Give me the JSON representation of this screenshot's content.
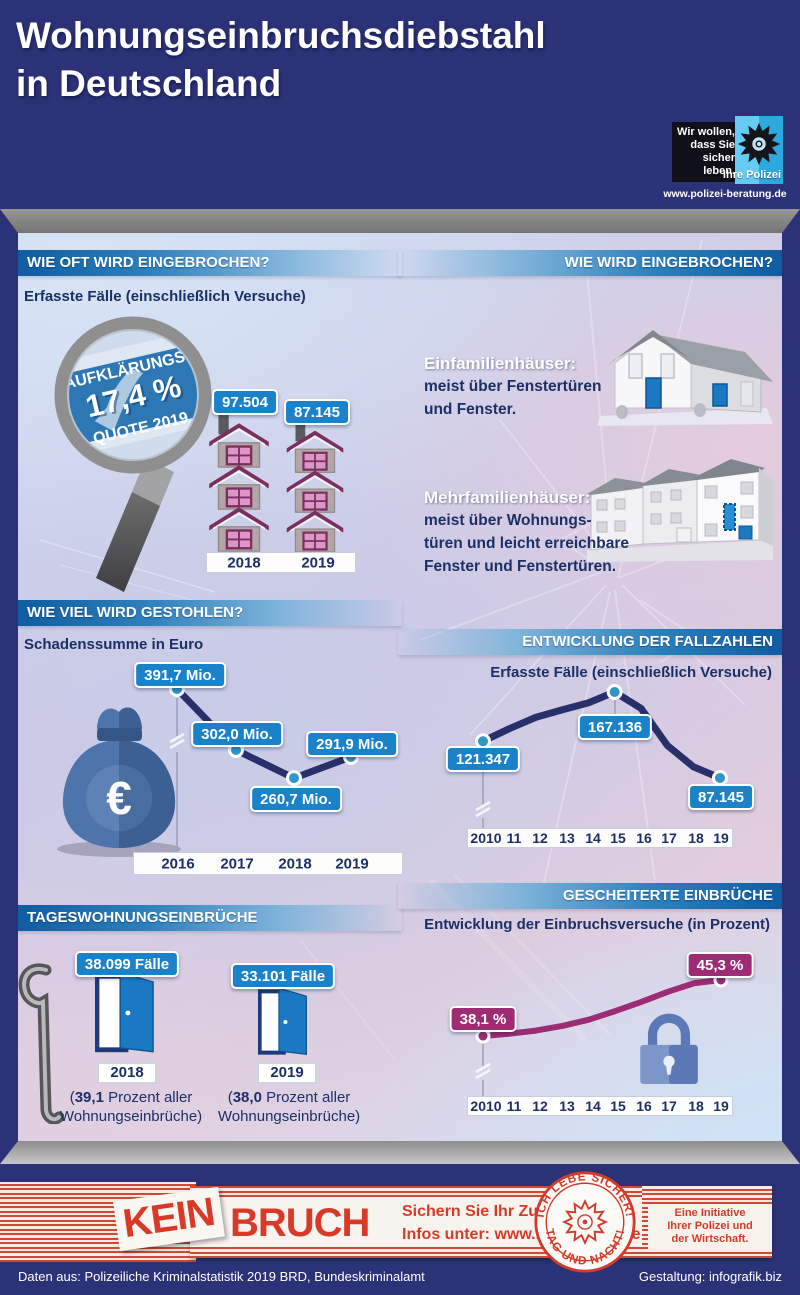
{
  "poster": {
    "title_line1": "Wohnungseinbruchsdiebstahl",
    "title_line2": "in Deutschland",
    "police": {
      "slogan1": "Wir wollen,",
      "slogan2": "dass Sie",
      "slogan3": "sicher leben.",
      "brand": "Ihre Polizei",
      "url": "www.polizei-beratung.de"
    }
  },
  "sections": {
    "how_often": {
      "header": "WIE OFT WIRD EINGEBROCHEN?",
      "subtitle": "Erfasste Fälle (einschließlich Versuche)",
      "magnifier": {
        "top": "AUFKLÄRUNGS-",
        "value": "17,4 %",
        "bottom": "QUOTE 2019"
      },
      "values": [
        "97.504",
        "87.145"
      ],
      "years": [
        "2018",
        "2019"
      ]
    },
    "how": {
      "header": "WIE WIRD EINGEBROCHEN?",
      "single_family": {
        "title": "Einfamilienhäuser:",
        "line1": "meist über Fenstertüren",
        "line2": "und Fenster."
      },
      "multi_family": {
        "title": "Mehrfamilienhäuser:",
        "line1": "meist über Wohnungs-",
        "line2": "türen und leicht erreichbare",
        "line3": "Fenster und Fenstertüren."
      }
    },
    "how_much": {
      "header": "WIE VIEL WIRD GESTOHLEN?",
      "subtitle": "Schadenssumme in Euro",
      "labels": [
        "391,7 Mio.",
        "302,0 Mio.",
        "260,7 Mio.",
        "291,9 Mio."
      ],
      "years": [
        "2016",
        "2017",
        "2018",
        "2019"
      ]
    },
    "case_development": {
      "header": "ENTWICKLUNG DER FALLZAHLEN",
      "subtitle": "Erfasste Fälle (einschließlich Versuche)",
      "labels": [
        "121.347",
        "167.136",
        "87.145"
      ],
      "years": [
        "2010",
        "11",
        "12",
        "13",
        "14",
        "15",
        "16",
        "17",
        "18",
        "19"
      ]
    },
    "daytime": {
      "header": "TAGESWOHNUNGSEINBRÜCHE",
      "items": [
        {
          "cases": "38.099 Fälle",
          "year": "2018",
          "bracket": "(",
          "pct": "39,1",
          "suffix": " Prozent aller",
          "line2": "Wohnungseinbrüche)"
        },
        {
          "cases": "33.101 Fälle",
          "year": "2019",
          "bracket": "(",
          "pct": "38,0",
          "suffix": " Prozent aller",
          "line2": "Wohnungseinbrüche)"
        }
      ]
    },
    "failed": {
      "header": "GESCHEITERTE EINBRÜCHE",
      "subtitle": "Entwicklung der Einbruchsversuche (in Prozent)",
      "labels": [
        "38,1 %",
        "45,3 %"
      ],
      "years": [
        "2010",
        "11",
        "12",
        "13",
        "14",
        "15",
        "16",
        "17",
        "18",
        "19"
      ]
    }
  },
  "footer": {
    "campaign": {
      "kein": "KEIN",
      "bruch": "BRUCH",
      "line1": "Sichern Sie Ihr Zuhause.",
      "line2": "Infos unter: www.k-einbruch.de",
      "stamp_top": "ICH LEBE SICHER!",
      "stamp_bottom": "TAG UND NACHT!",
      "init1": "Eine Initiative",
      "init2": "Ihrer Polizei und",
      "init3": "der Wirtschaft."
    },
    "source": "Daten aus: Polizeiliche Kriminalstatistik 2019 BRD, Bundeskriminalamt",
    "design": "Gestaltung: infografik.biz"
  },
  "colors": {
    "navy_frame": "#2c3278",
    "header_bar_blue": "#0e5ca2",
    "accent_blue_bubble": "#1a82c8",
    "line_navy": "#27306b",
    "marker_teal": "#2e96c8",
    "magenta": "#9e2c74",
    "campaign_red": "#d93a28",
    "text_navy": "#1b3066"
  },
  "chart_data": [
    {
      "type": "bar",
      "title": "Wie oft wird eingebrochen? — Erfasste Fälle (einschließlich Versuche)",
      "categories": [
        "2018",
        "2019"
      ],
      "values": [
        97504,
        87145
      ],
      "annotation": "Aufklärungsquote 2019: 17,4 %"
    },
    {
      "type": "line",
      "title": "Schadenssumme in Euro",
      "unit": "Mio. Euro",
      "categories": [
        "2016",
        "2017",
        "2018",
        "2019"
      ],
      "values": [
        391.7,
        302.0,
        260.7,
        291.9
      ],
      "point_labels": [
        "391,7 Mio.",
        "302,0 Mio.",
        "260,7 Mio.",
        "291,9 Mio."
      ]
    },
    {
      "type": "line",
      "title": "Entwicklung der Fallzahlen",
      "subtitle": "Erfasste Fälle (einschließlich Versuche)",
      "categories": [
        "2010",
        "2011",
        "2012",
        "2013",
        "2014",
        "2015",
        "2016",
        "2017",
        "2018",
        "2019"
      ],
      "values": [
        121347,
        133000,
        143500,
        150500,
        157000,
        167136,
        152000,
        117500,
        97504,
        87145
      ],
      "labeled_points": {
        "2010": 121347,
        "2015": 167136,
        "2019": 87145
      }
    },
    {
      "type": "line",
      "title": "Gescheiterte Einbrüche",
      "subtitle": "Entwicklung der Einbruchsversuche (in Prozent)",
      "unit": "%",
      "categories": [
        "2010",
        "2011",
        "2012",
        "2013",
        "2014",
        "2015",
        "2016",
        "2017",
        "2018",
        "2019"
      ],
      "values": [
        38.1,
        38.4,
        38.8,
        39.4,
        40.2,
        41.3,
        42.5,
        43.8,
        44.9,
        45.3
      ],
      "labeled_points": {
        "2010": 38.1,
        "2019": 45.3
      }
    },
    {
      "type": "bar",
      "title": "Tageswohnungseinbrüche",
      "categories": [
        "2018",
        "2019"
      ],
      "values": [
        38099,
        33101
      ],
      "percent_of_all_burglaries": [
        39.1,
        38.0
      ]
    }
  ]
}
